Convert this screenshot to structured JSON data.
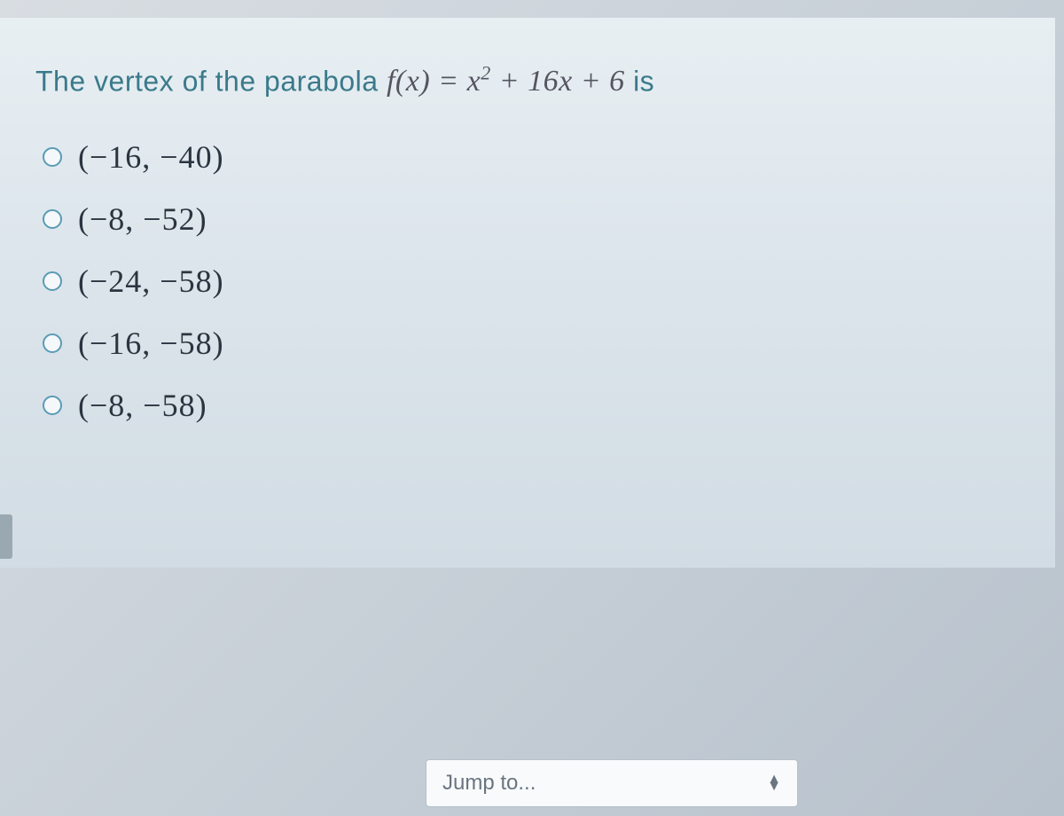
{
  "question": {
    "prompt_prefix": "The vertex of the parabola ",
    "function_lhs": "f(x)",
    "equals": " = ",
    "function_rhs_base": "x",
    "function_rhs_exp": "2",
    "function_rhs_rest": " + 16x + 6",
    "prompt_suffix": " is",
    "text_color": "#3a7a8a",
    "math_color": "#555560",
    "fontsize_prompt": 32,
    "fontsize_math": 34
  },
  "options": [
    {
      "label": "(−16, −40)"
    },
    {
      "label": "(−8, −52)"
    },
    {
      "label": "(−24, −58)"
    },
    {
      "label": "(−16, −58)"
    },
    {
      "label": "(−8, −58)"
    }
  ],
  "option_style": {
    "radio_border_color": "#5a9bb5",
    "radio_fill": "#f5f8fa",
    "label_color": "#2a3540",
    "label_fontsize": 36
  },
  "panel": {
    "background_gradient_top": "#e8eff3",
    "background_gradient_bottom": "#d2dce4"
  },
  "navigation": {
    "jump_label": "Jump to...",
    "jump_bg": "#f8fafb",
    "jump_border": "#b5c0c8",
    "jump_text_color": "#6a7580"
  },
  "page": {
    "background_top": "#d8dde2",
    "background_bottom": "#b8c2cc"
  }
}
